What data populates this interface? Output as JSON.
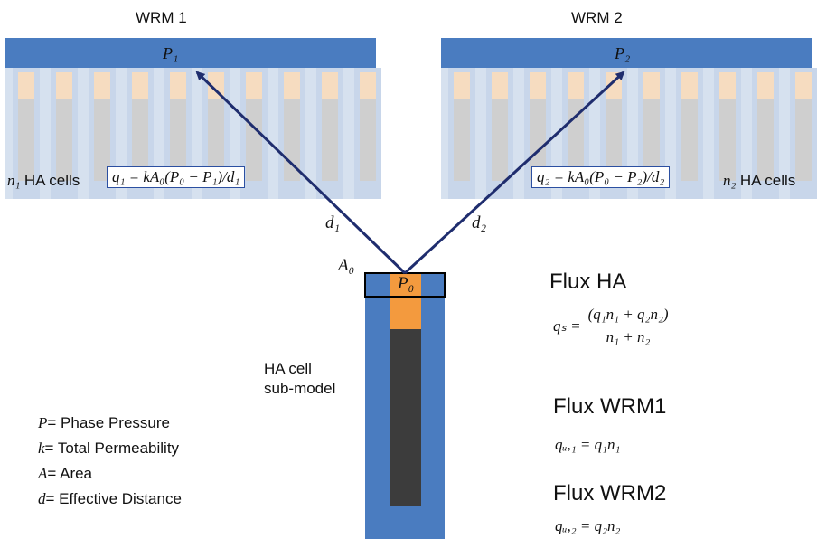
{
  "panels": {
    "left": {
      "title": "WRM 1",
      "pressure": "P₁",
      "cells_count": "n₁",
      "cells_label": "HA cells",
      "equation": "q₁ = kA₀(P₀ − P₁)/d₁",
      "distance": "d₁"
    },
    "right": {
      "title": "WRM 2",
      "pressure": "P₂",
      "cells_count": "n₂",
      "cells_label": "HA cells",
      "equation": "q₂ = kA₀(P₀ − P₂)/d₂",
      "distance": "d₂"
    }
  },
  "center": {
    "area_label": "A₀",
    "pressure_label": "P₀",
    "submodel_label_line1": "HA cell",
    "submodel_label_line2": "sub-model"
  },
  "legend": [
    {
      "symbol": "P",
      "text": "= Phase Pressure"
    },
    {
      "symbol": "k",
      "text": "= Total Permeability"
    },
    {
      "symbol": "A",
      "text": "= Area"
    },
    {
      "symbol": "d",
      "text": "= Effective Distance"
    }
  ],
  "flux": {
    "ha": {
      "title": "Flux HA",
      "lhs": "qₛ =",
      "numerator": "(q₁n₁ + q₂n₂)",
      "denominator": "n₁ + n₂"
    },
    "wrm1": {
      "title": "Flux WRM1",
      "equation": "qᵤ,₁ = q₁n₁"
    },
    "wrm2": {
      "title": "Flux WRM2",
      "equation": "qᵤ,₂ = q₂n₂"
    }
  },
  "colors": {
    "blue": "#4a7cc0",
    "light_blue": "#d6e1ef",
    "orange": "#f39a3e",
    "light_orange": "#f6dcc0",
    "dark": "#3c3c3c",
    "arrow": "#1f2d6e"
  }
}
